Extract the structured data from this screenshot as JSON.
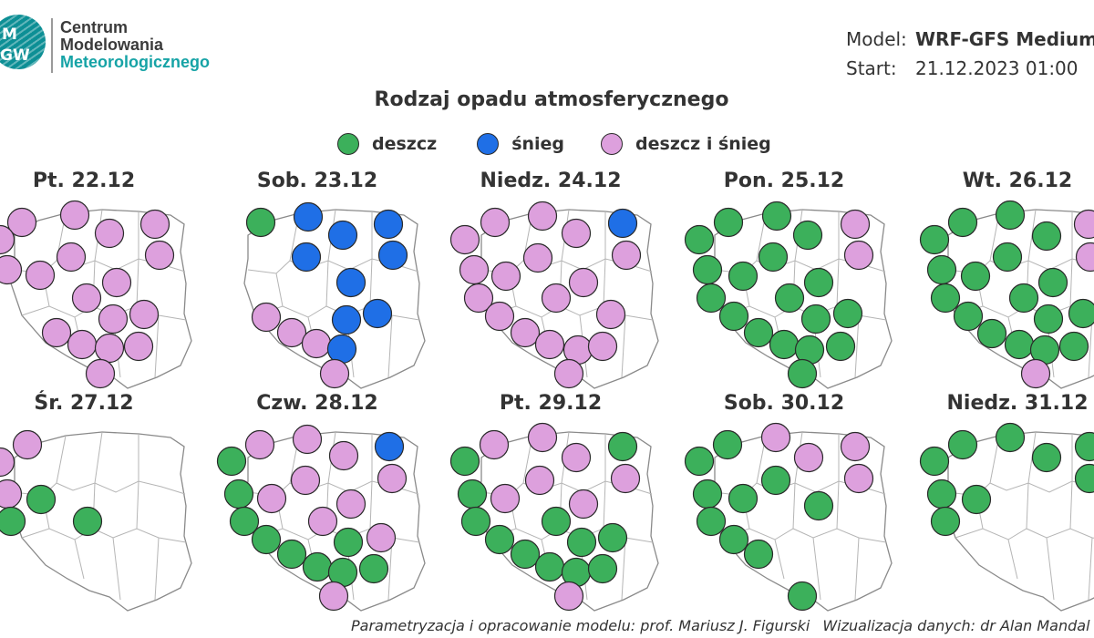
{
  "header": {
    "logo_text_top": "M",
    "logo_text_bottom": "GW",
    "org_line1": "Centrum",
    "org_line2": "Modelowania",
    "org_line3": "Meteorologicznego",
    "model_label": "Model:",
    "model_value": "WRF-GFS Medium",
    "start_label": "Start:",
    "start_value": "21.12.2023 01:00"
  },
  "title": "Rodzaj opadu atmosferycznego",
  "legend": [
    {
      "label": "deszcz",
      "color": "#3cb05b"
    },
    {
      "label": "śnieg",
      "color": "#1f6fe6"
    },
    {
      "label": "deszcz i śnieg",
      "color": "#dda0dd"
    }
  ],
  "colors": {
    "rain": "#3cb05b",
    "snow": "#1f6fe6",
    "mixed": "#dda0dd",
    "outline": "#2a2a2a",
    "border": "#8a8a8a"
  },
  "maps": [
    {
      "label": "Pt. 22.12",
      "points": [
        [
          "M",
          24,
          244
        ],
        [
          "M",
          82,
          236
        ],
        [
          "M",
          120,
          256
        ],
        [
          "M",
          170,
          246
        ],
        [
          "M",
          0,
          263
        ],
        [
          "M",
          78,
          282
        ],
        [
          "M",
          175,
          280
        ],
        [
          "M",
          8,
          296
        ],
        [
          "M",
          44,
          302
        ],
        [
          "M",
          128,
          310
        ],
        [
          "M",
          95,
          327
        ],
        [
          "M",
          158,
          345
        ],
        [
          "M",
          124,
          350
        ],
        [
          "M",
          62,
          365
        ],
        [
          "M",
          90,
          378
        ],
        [
          "M",
          120,
          382
        ],
        [
          "M",
          152,
          380
        ],
        [
          "M",
          110,
          410
        ]
      ]
    },
    {
      "label": "Sob. 23.12",
      "points": [
        [
          "R",
          286,
          244
        ],
        [
          "S",
          338,
          238
        ],
        [
          "S",
          376,
          258
        ],
        [
          "S",
          426,
          246
        ],
        [
          "S",
          336,
          282
        ],
        [
          "S",
          431,
          280
        ],
        [
          "S",
          385,
          310
        ],
        [
          "S",
          414,
          344
        ],
        [
          "S",
          380,
          351
        ],
        [
          "M",
          292,
          348
        ],
        [
          "M",
          320,
          365
        ],
        [
          "M",
          347,
          377
        ],
        [
          "S",
          375,
          383
        ],
        [
          "M",
          367,
          410
        ]
      ]
    },
    {
      "label": "Niedz. 24.12",
      "points": [
        [
          "M",
          543,
          244
        ],
        [
          "M",
          595,
          237
        ],
        [
          "M",
          632,
          256
        ],
        [
          "S",
          683,
          245
        ],
        [
          "M",
          510,
          263
        ],
        [
          "M",
          590,
          283
        ],
        [
          "M",
          687,
          280
        ],
        [
          "M",
          520,
          296
        ],
        [
          "M",
          555,
          303
        ],
        [
          "M",
          640,
          310
        ],
        [
          "M",
          525,
          327
        ],
        [
          "M",
          610,
          327
        ],
        [
          "M",
          670,
          345
        ],
        [
          "M",
          548,
          347
        ],
        [
          "M",
          576,
          365
        ],
        [
          "M",
          603,
          378
        ],
        [
          "M",
          634,
          384
        ],
        [
          "M",
          661,
          380
        ],
        [
          "M",
          624,
          410
        ]
      ]
    },
    {
      "label": "Pon. 25.12",
      "points": [
        [
          "R",
          799,
          244
        ],
        [
          "R",
          852,
          237
        ],
        [
          "R",
          886,
          258
        ],
        [
          "M",
          938,
          246
        ],
        [
          "R",
          767,
          263
        ],
        [
          "R",
          848,
          282
        ],
        [
          "M",
          942,
          280
        ],
        [
          "R",
          776,
          296
        ],
        [
          "R",
          815,
          303
        ],
        [
          "R",
          898,
          310
        ],
        [
          "R",
          780,
          327
        ],
        [
          "R",
          866,
          327
        ],
        [
          "R",
          930,
          344
        ],
        [
          "R",
          805,
          347
        ],
        [
          "R",
          895,
          350
        ],
        [
          "R",
          832,
          365
        ],
        [
          "R",
          860,
          378
        ],
        [
          "R",
          888,
          384
        ],
        [
          "R",
          922,
          380
        ],
        [
          "R",
          880,
          410
        ]
      ]
    },
    {
      "label": "Wt. 26.12",
      "points": [
        [
          "R",
          1056,
          244
        ],
        [
          "R",
          1108,
          236
        ],
        [
          "R",
          1148,
          259
        ],
        [
          "M",
          1194,
          246
        ],
        [
          "R",
          1025,
          263
        ],
        [
          "R",
          1105,
          282
        ],
        [
          "M",
          1196,
          282
        ],
        [
          "R",
          1033,
          296
        ],
        [
          "R",
          1070,
          303
        ],
        [
          "R",
          1155,
          310
        ],
        [
          "R",
          1037,
          327
        ],
        [
          "R",
          1123,
          327
        ],
        [
          "R",
          1188,
          344
        ],
        [
          "R",
          1062,
          347
        ],
        [
          "R",
          1150,
          350
        ],
        [
          "R",
          1088,
          366
        ],
        [
          "R",
          1118,
          378
        ],
        [
          "R",
          1146,
          384
        ],
        [
          "R",
          1178,
          380
        ],
        [
          "M",
          1136,
          410
        ]
      ]
    },
    {
      "label": "Śr. 27.12",
      "points": [
        [
          "M",
          30,
          488
        ],
        [
          "M",
          0,
          507
        ],
        [
          "M",
          8,
          542
        ],
        [
          "R",
          45,
          548
        ],
        [
          "R",
          12,
          572
        ],
        [
          "R",
          96,
          572
        ]
      ]
    },
    {
      "label": "Czw. 28.12",
      "points": [
        [
          "M",
          285,
          488
        ],
        [
          "M",
          337,
          482
        ],
        [
          "M",
          377,
          500
        ],
        [
          "S",
          427,
          490
        ],
        [
          "R",
          254,
          506
        ],
        [
          "M",
          335,
          527
        ],
        [
          "M",
          430,
          525
        ],
        [
          "R",
          262,
          542
        ],
        [
          "M",
          298,
          547
        ],
        [
          "M",
          385,
          553
        ],
        [
          "R",
          268,
          572
        ],
        [
          "M",
          354,
          572
        ],
        [
          "M",
          418,
          590
        ],
        [
          "R",
          292,
          592
        ],
        [
          "R",
          382,
          595
        ],
        [
          "R",
          320,
          608
        ],
        [
          "R",
          348,
          622
        ],
        [
          "R",
          376,
          628
        ],
        [
          "R",
          410,
          624
        ],
        [
          "M",
          366,
          654
        ]
      ]
    },
    {
      "label": "Pt. 29.12",
      "points": [
        [
          "M",
          542,
          488
        ],
        [
          "M",
          595,
          480
        ],
        [
          "M",
          632,
          502
        ],
        [
          "R",
          683,
          490
        ],
        [
          "R",
          510,
          506
        ],
        [
          "M",
          592,
          527
        ],
        [
          "M",
          686,
          525
        ],
        [
          "R",
          518,
          542
        ],
        [
          "M",
          554,
          547
        ],
        [
          "M",
          640,
          553
        ],
        [
          "R",
          522,
          572
        ],
        [
          "R",
          610,
          572
        ],
        [
          "R",
          672,
          590
        ],
        [
          "R",
          548,
          592
        ],
        [
          "R",
          638,
          595
        ],
        [
          "R",
          576,
          608
        ],
        [
          "R",
          603,
          622
        ],
        [
          "R",
          632,
          628
        ],
        [
          "R",
          661,
          624
        ],
        [
          "M",
          624,
          654
        ]
      ]
    },
    {
      "label": "Sob. 30.12",
      "points": [
        [
          "R",
          798,
          488
        ],
        [
          "M",
          851,
          480
        ],
        [
          "M",
          887,
          502
        ],
        [
          "M",
          938,
          490
        ],
        [
          "R",
          767,
          506
        ],
        [
          "R",
          851,
          527
        ],
        [
          "M",
          942,
          525
        ],
        [
          "R",
          776,
          542
        ],
        [
          "R",
          815,
          547
        ],
        [
          "R",
          898,
          555
        ],
        [
          "R",
          780,
          572
        ],
        [
          "R",
          805,
          592
        ],
        [
          "R",
          832,
          608
        ],
        [
          "R",
          880,
          654
        ]
      ]
    },
    {
      "label": "Niedz. 31.12",
      "points": [
        [
          "R",
          1056,
          488
        ],
        [
          "R",
          1108,
          480
        ],
        [
          "R",
          1148,
          502
        ],
        [
          "R",
          1195,
          490
        ],
        [
          "R",
          1025,
          506
        ],
        [
          "R",
          1195,
          525
        ],
        [
          "R",
          1033,
          542
        ],
        [
          "R",
          1071,
          548
        ],
        [
          "R",
          1037,
          572
        ]
      ]
    }
  ],
  "footer": {
    "credit1": "Parametryzacja i opracowanie modelu: prof. Mariusz J. Figurski",
    "credit2": "Wizualizacja danych: dr Alan Mandal"
  }
}
